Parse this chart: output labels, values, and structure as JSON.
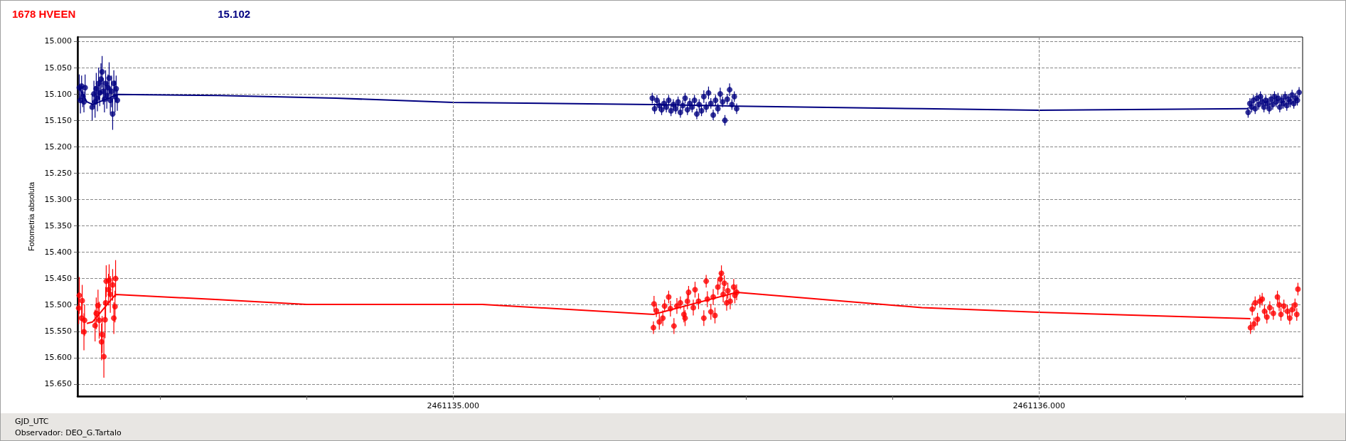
{
  "chart_data": {
    "type": "scatter",
    "xlabel": "GJD_UTC",
    "ylabel": "Fotometria absoluta",
    "annotations": [
      "Observador: DEO_G.Tartalo"
    ],
    "xlim": [
      2461134.359,
      2461136.45
    ],
    "ylim": [
      15.673,
      14.992
    ],
    "xticks": [
      {
        "value": 2461134.5,
        "label": null
      },
      {
        "value": 2461134.75,
        "label": null
      },
      {
        "value": 2461135,
        "label": "2461135.000"
      },
      {
        "value": 2461135.25,
        "label": null
      },
      {
        "value": 2461135.5,
        "label": null
      },
      {
        "value": 2461135.75,
        "label": null
      },
      {
        "value": 2461136,
        "label": "2461136.000"
      },
      {
        "value": 2461136.25,
        "label": null
      }
    ],
    "yticks": [
      {
        "value": 15,
        "label": "15.000"
      },
      {
        "value": 15.05,
        "label": "15.050"
      },
      {
        "value": 15.1,
        "label": "15.100"
      },
      {
        "value": 15.15,
        "label": "15.150"
      },
      {
        "value": 15.2,
        "label": "15.200"
      },
      {
        "value": 15.25,
        "label": "15.250"
      },
      {
        "value": 15.3,
        "label": "15.300"
      },
      {
        "value": 15.35,
        "label": "15.350"
      },
      {
        "value": 15.4,
        "label": "15.400"
      },
      {
        "value": 15.45,
        "label": "15.450"
      },
      {
        "value": 15.5,
        "label": "15.500"
      },
      {
        "value": 15.55,
        "label": "15.550"
      },
      {
        "value": 15.6,
        "label": "15.600"
      },
      {
        "value": 15.65,
        "label": "15.650"
      }
    ],
    "grid": true,
    "legend": "top left",
    "marker": "circle",
    "series": [
      {
        "name": "1678 HVEEN",
        "color": "#ff0000",
        "x": [
          2461134.361,
          2461134.362,
          2461134.366,
          2461134.367,
          2461134.37,
          2461134.371,
          2461134.389,
          2461134.391,
          2461134.394,
          2461134.396,
          2461134.4,
          2461134.401,
          2461134.404,
          2461134.406,
          2461134.407,
          2461134.408,
          2461134.412,
          2461134.413,
          2461134.415,
          2461134.419,
          2461134.421,
          2461134.423,
          2461134.424,
          2461135.342,
          2461135.343,
          2461135.347,
          2461135.352,
          2461135.358,
          2461135.361,
          2461135.368,
          2461135.371,
          2461135.377,
          2461135.382,
          2461135.388,
          2461135.394,
          2461135.396,
          2461135.4,
          2461135.402,
          2461135.41,
          2461135.413,
          2461135.419,
          2461135.428,
          2461135.432,
          2461135.434,
          2461135.44,
          2461135.444,
          2461135.447,
          2461135.452,
          2461135.456,
          2461135.458,
          2461135.461,
          2461135.463,
          2461135.467,
          2461135.469,
          2461135.473,
          2461135.479,
          2461135.481,
          2461135.484,
          2461136.361,
          2461136.364,
          2461136.367,
          2461136.369,
          2461136.373,
          2461136.377,
          2461136.381,
          2461136.385,
          2461136.389,
          2461136.394,
          2461136.4,
          2461136.407,
          2461136.41,
          2461136.413,
          2461136.418,
          2461136.424,
          2461136.428,
          2461136.432,
          2461136.437,
          2461136.44,
          2461136.442
        ],
        "values": [
          15.506,
          15.482,
          15.525,
          15.492,
          15.551,
          15.529,
          15.539,
          15.516,
          15.501,
          15.529,
          15.57,
          15.556,
          15.598,
          15.528,
          15.496,
          15.455,
          15.471,
          15.453,
          15.48,
          15.462,
          15.525,
          15.503,
          15.45,
          15.543,
          15.498,
          15.511,
          15.532,
          15.525,
          15.502,
          15.485,
          15.507,
          15.54,
          15.502,
          15.496,
          15.518,
          15.525,
          15.493,
          15.476,
          15.505,
          15.471,
          15.493,
          15.525,
          15.455,
          15.489,
          15.513,
          15.485,
          15.52,
          15.466,
          15.451,
          15.44,
          15.48,
          15.459,
          15.496,
          15.473,
          15.493,
          15.466,
          15.482,
          15.476,
          15.543,
          15.508,
          15.536,
          15.496,
          15.527,
          15.493,
          15.489,
          15.512,
          15.523,
          15.505,
          15.516,
          15.485,
          15.5,
          15.518,
          15.502,
          15.512,
          15.525,
          15.509,
          15.5,
          15.518,
          15.47
        ],
        "errors": [
          0.03,
          0.035,
          0.03,
          0.03,
          0.035,
          0.03,
          0.03,
          0.03,
          0.03,
          0.035,
          0.035,
          0.035,
          0.04,
          0.035,
          0.03,
          0.03,
          0.03,
          0.03,
          0.035,
          0.03,
          0.03,
          0.03,
          0.035,
          0.012,
          0.015,
          0.012,
          0.015,
          0.015,
          0.012,
          0.012,
          0.015,
          0.015,
          0.015,
          0.012,
          0.015,
          0.015,
          0.015,
          0.012,
          0.015,
          0.015,
          0.015,
          0.015,
          0.012,
          0.015,
          0.015,
          0.015,
          0.015,
          0.015,
          0.012,
          0.015,
          0.015,
          0.015,
          0.015,
          0.015,
          0.015,
          0.015,
          0.015,
          0.015,
          0.012,
          0.012,
          0.012,
          0.012,
          0.012,
          0.012,
          0.012,
          0.012,
          0.012,
          0.012,
          0.012,
          0.012,
          0.012,
          0.012,
          0.012,
          0.012,
          0.012,
          0.012,
          0.012,
          0.012,
          0.012
        ]
      },
      {
        "type": "line",
        "marker": "none",
        "color": "#ff0000",
        "x": [
          2461134.375,
          2461134.385,
          2461134.424,
          2461134.6,
          2461134.75,
          2461135.05,
          2461135.342,
          2461135.484,
          2461135.8,
          2461136.0,
          2461136.361
        ],
        "values": [
          15.535,
          15.532,
          15.48,
          15.49,
          15.499,
          15.499,
          15.518,
          15.476,
          15.505,
          15.514,
          15.526
        ]
      },
      {
        "name": "15.102",
        "color": "#000080",
        "x": [
          2461134.362,
          2461134.364,
          2461134.366,
          2461134.368,
          2461134.37,
          2461134.372,
          2461134.384,
          2461134.387,
          2461134.389,
          2461134.391,
          2461134.393,
          2461134.395,
          2461134.397,
          2461134.399,
          2461134.401,
          2461134.403,
          2461134.405,
          2461134.407,
          2461134.409,
          2461134.411,
          2461134.413,
          2461134.415,
          2461134.417,
          2461134.419,
          2461134.421,
          2461134.423,
          2461134.425,
          2461134.427,
          2461135.34,
          2461135.344,
          2461135.348,
          2461135.352,
          2461135.356,
          2461135.36,
          2461135.364,
          2461135.368,
          2461135.372,
          2461135.376,
          2461135.38,
          2461135.384,
          2461135.388,
          2461135.392,
          2461135.396,
          2461135.4,
          2461135.404,
          2461135.408,
          2461135.412,
          2461135.416,
          2461135.42,
          2461135.424,
          2461135.428,
          2461135.432,
          2461135.436,
          2461135.44,
          2461135.444,
          2461135.448,
          2461135.452,
          2461135.456,
          2461135.46,
          2461135.464,
          2461135.468,
          2461135.472,
          2461135.476,
          2461135.48,
          2461135.484,
          2461136.357,
          2461136.36,
          2461136.363,
          2461136.366,
          2461136.369,
          2461136.372,
          2461136.375,
          2461136.378,
          2461136.381,
          2461136.384,
          2461136.387,
          2461136.39,
          2461136.393,
          2461136.396,
          2461136.399,
          2461136.402,
          2461136.405,
          2461136.408,
          2461136.411,
          2461136.414,
          2461136.417,
          2461136.42,
          2461136.423,
          2461136.426,
          2461136.429,
          2461136.432,
          2461136.435,
          2461136.438,
          2461136.441,
          2461136.444
        ],
        "values": [
          15.088,
          15.112,
          15.085,
          15.105,
          15.115,
          15.088,
          15.125,
          15.1,
          15.115,
          15.09,
          15.108,
          15.08,
          15.098,
          15.072,
          15.058,
          15.095,
          15.11,
          15.08,
          15.103,
          15.088,
          15.07,
          15.112,
          15.095,
          15.138,
          15.08,
          15.105,
          15.09,
          15.112,
          15.108,
          15.128,
          15.112,
          15.122,
          15.13,
          15.118,
          15.125,
          15.112,
          15.132,
          15.12,
          15.128,
          15.115,
          15.135,
          15.122,
          15.108,
          15.13,
          15.118,
          15.125,
          15.112,
          15.138,
          15.12,
          15.132,
          15.105,
          15.125,
          15.098,
          15.118,
          15.14,
          15.112,
          15.128,
          15.1,
          15.115,
          15.15,
          15.11,
          15.092,
          15.12,
          15.105,
          15.128,
          15.135,
          15.118,
          15.125,
          15.112,
          15.128,
          15.108,
          15.12,
          15.105,
          15.115,
          15.125,
          15.112,
          15.118,
          15.128,
          15.11,
          15.12,
          15.105,
          15.115,
          15.108,
          15.125,
          15.112,
          15.118,
          15.105,
          15.122,
          15.11,
          15.115,
          15.102,
          15.118,
          15.108,
          15.112,
          15.097
        ],
        "errors": [
          0.025,
          0.025,
          0.02,
          0.02,
          0.02,
          0.025,
          0.025,
          0.025,
          0.03,
          0.03,
          0.025,
          0.03,
          0.025,
          0.03,
          0.03,
          0.025,
          0.025,
          0.025,
          0.025,
          0.025,
          0.03,
          0.025,
          0.03,
          0.03,
          0.025,
          0.03,
          0.025,
          0.02,
          0.01,
          0.01,
          0.01,
          0.01,
          0.01,
          0.01,
          0.01,
          0.01,
          0.01,
          0.01,
          0.01,
          0.01,
          0.01,
          0.01,
          0.01,
          0.01,
          0.01,
          0.01,
          0.01,
          0.01,
          0.01,
          0.01,
          0.012,
          0.01,
          0.012,
          0.01,
          0.01,
          0.01,
          0.01,
          0.012,
          0.01,
          0.01,
          0.01,
          0.012,
          0.01,
          0.01,
          0.01,
          0.01,
          0.01,
          0.01,
          0.01,
          0.01,
          0.01,
          0.01,
          0.01,
          0.01,
          0.01,
          0.01,
          0.01,
          0.01,
          0.01,
          0.01,
          0.01,
          0.01,
          0.01,
          0.01,
          0.01,
          0.01,
          0.01,
          0.01,
          0.01,
          0.01,
          0.01,
          0.01,
          0.01,
          0.01,
          0.01
        ]
      },
      {
        "type": "line",
        "marker": "none",
        "color": "#000080",
        "x": [
          2461134.362,
          2461134.375,
          2461134.385,
          2461134.428,
          2461134.6,
          2461134.8,
          2461135.0,
          2461135.34,
          2461135.486,
          2461135.8,
          2461136.0,
          2461136.357
        ],
        "values": [
          15.088,
          15.115,
          15.12,
          15.101,
          15.103,
          15.108,
          15.116,
          15.12,
          15.123,
          15.128,
          15.131,
          15.128
        ]
      }
    ]
  }
}
